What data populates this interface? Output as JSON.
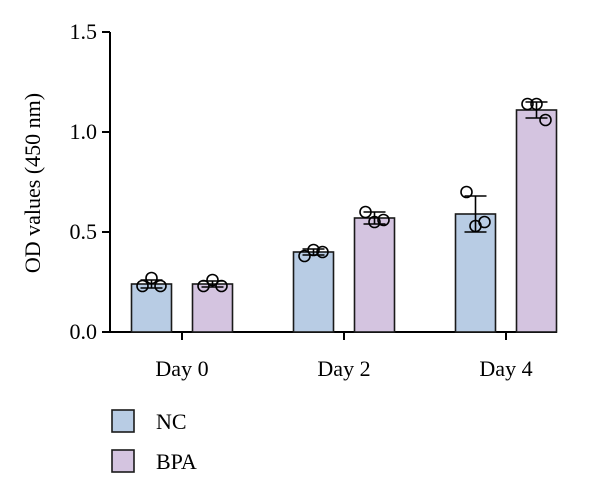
{
  "chart_data": {
    "type": "bar",
    "title": "",
    "xlabel": "",
    "ylabel": "OD values (450 nm)",
    "ylim": [
      0,
      1.5
    ],
    "yticks": [
      "0.0",
      "0.5",
      "1.0",
      "1.5"
    ],
    "categories": [
      "Day 0",
      "Day 2",
      "Day 4"
    ],
    "series": [
      {
        "name": "NC",
        "color": "#b8cce4",
        "values": [
          0.24,
          0.4,
          0.59
        ],
        "error": [
          0.02,
          0.015,
          0.09
        ],
        "points": [
          [
            0.23,
            0.27,
            0.23
          ],
          [
            0.38,
            0.41,
            0.4
          ],
          [
            0.7,
            0.53,
            0.55
          ]
        ]
      },
      {
        "name": "BPA",
        "color": "#d4c4e0",
        "values": [
          0.24,
          0.57,
          1.11
        ],
        "error": [
          0.015,
          0.03,
          0.04
        ],
        "points": [
          [
            0.23,
            0.26,
            0.23
          ],
          [
            0.6,
            0.55,
            0.56
          ],
          [
            1.14,
            1.14,
            1.06
          ]
        ]
      }
    ],
    "legend": {
      "position": "bottom-left",
      "entries": [
        "NC",
        "BPA"
      ]
    }
  }
}
